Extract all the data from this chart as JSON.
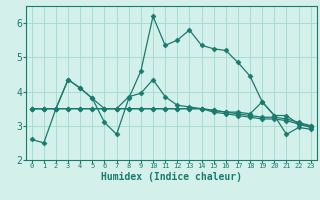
{
  "x": [
    0,
    1,
    2,
    3,
    4,
    5,
    6,
    7,
    8,
    9,
    10,
    11,
    12,
    13,
    14,
    15,
    16,
    17,
    18,
    19,
    20,
    21,
    22,
    23
  ],
  "line1": [
    2.6,
    2.5,
    3.5,
    4.35,
    4.1,
    3.8,
    3.1,
    2.75,
    3.8,
    4.6,
    6.2,
    5.35,
    5.5,
    5.8,
    5.35,
    5.25,
    5.2,
    4.85,
    4.45,
    3.7,
    3.3,
    2.75,
    2.95,
    2.9
  ],
  "line2": [
    3.5,
    3.5,
    3.5,
    4.35,
    4.1,
    3.8,
    3.5,
    3.5,
    3.85,
    3.95,
    4.35,
    3.85,
    3.6,
    3.55,
    3.5,
    3.45,
    3.4,
    3.4,
    3.35,
    3.7,
    3.3,
    3.3,
    3.05,
    3.0
  ],
  "line3": [
    3.5,
    3.5,
    3.5,
    3.5,
    3.5,
    3.5,
    3.5,
    3.5,
    3.5,
    3.5,
    3.5,
    3.5,
    3.5,
    3.5,
    3.5,
    3.45,
    3.4,
    3.35,
    3.3,
    3.25,
    3.25,
    3.2,
    3.1,
    3.0
  ],
  "line4": [
    3.5,
    3.5,
    3.5,
    3.5,
    3.5,
    3.5,
    3.5,
    3.5,
    3.5,
    3.5,
    3.5,
    3.5,
    3.5,
    3.5,
    3.5,
    3.4,
    3.35,
    3.3,
    3.25,
    3.2,
    3.2,
    3.15,
    3.05,
    2.95
  ],
  "line_color": "#1a7a6e",
  "bg_color": "#d4f0ea",
  "grid_color": "#a8ddd4",
  "xlabel": "Humidex (Indice chaleur)",
  "ylim": [
    2,
    6.5
  ],
  "xlim": [
    -0.5,
    23.5
  ],
  "yticks": [
    2,
    3,
    4,
    5,
    6
  ],
  "xticks": [
    0,
    1,
    2,
    3,
    4,
    5,
    6,
    7,
    8,
    9,
    10,
    11,
    12,
    13,
    14,
    15,
    16,
    17,
    18,
    19,
    20,
    21,
    22,
    23
  ],
  "marker": "D",
  "markersize": 2.5,
  "linewidth": 0.9
}
